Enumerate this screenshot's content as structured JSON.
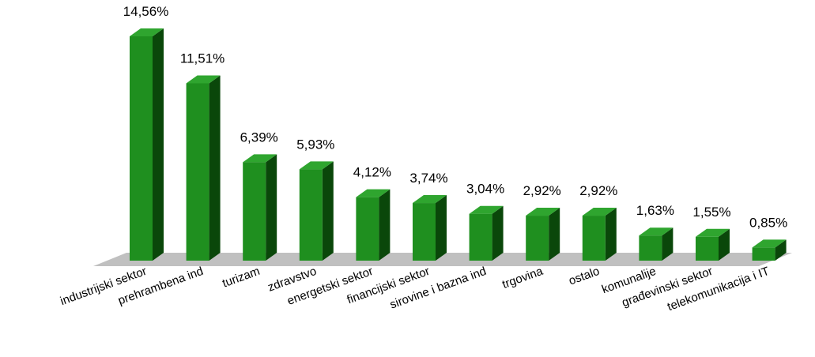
{
  "chart_data": {
    "type": "bar",
    "style": "3d-column",
    "title": "",
    "xlabel": "",
    "ylabel": "",
    "ylim": [
      0,
      16
    ],
    "grid": false,
    "legend": "none",
    "categories": [
      "industrijski sektor",
      "prehrambena ind",
      "turizam",
      "zdravstvo",
      "energetski sektor",
      "financijski sektor",
      "sirovine i bazna ind",
      "trgovina",
      "ostalo",
      "komunalije",
      "građevinski sektor",
      "telekomunikacija i IT"
    ],
    "values": [
      14.56,
      11.51,
      6.39,
      5.93,
      4.12,
      3.74,
      3.04,
      2.92,
      2.92,
      1.63,
      1.55,
      0.85
    ],
    "value_labels": [
      "14,56%",
      "11,51%",
      "6,39%",
      "5,93%",
      "4,12%",
      "3,74%",
      "3,04%",
      "2,92%",
      "2,92%",
      "1,63%",
      "1,55%",
      "0,85%"
    ],
    "colors": {
      "bar_front": "#1f8f1f",
      "bar_side": "#0a470a",
      "bar_top": "#2fa52f",
      "floor": "#c0c0c0"
    }
  }
}
